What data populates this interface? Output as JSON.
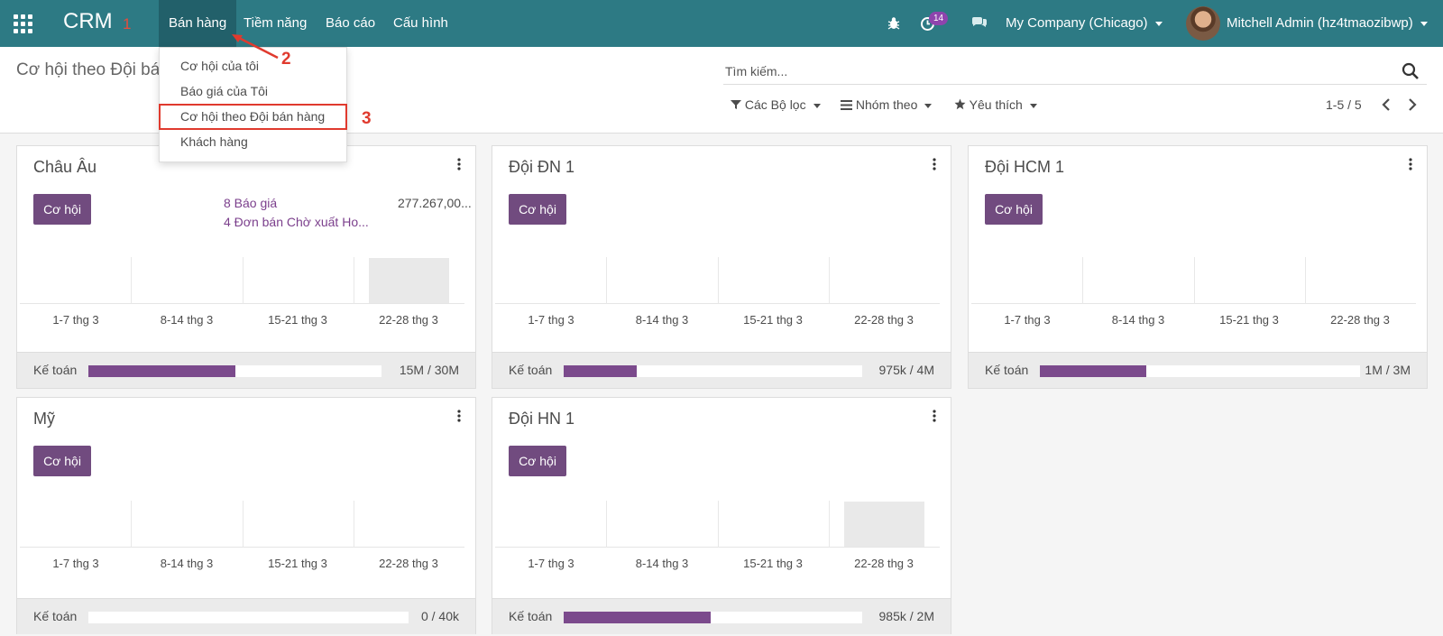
{
  "navbar": {
    "brand": "CRM",
    "brand_annotation": "1",
    "menu": [
      {
        "label": "Bán hàng"
      },
      {
        "label": "Tiềm năng"
      },
      {
        "label": "Báo cáo"
      },
      {
        "label": "Cấu hình"
      }
    ],
    "activity_count": "14",
    "company": "My Company (Chicago)",
    "user": "Mitchell Admin (hz4tmaozibwp)",
    "bg_color": "#2d7a84"
  },
  "dropdown": {
    "items": [
      {
        "label": "Cơ hội của tôi"
      },
      {
        "label": "Báo giá của Tôi"
      },
      {
        "label": "Cơ hội theo Đội bán hàng"
      },
      {
        "label": "Khách hàng"
      }
    ],
    "annotation_arrow": "2",
    "annotation_item": "3"
  },
  "control": {
    "breadcrumb": "Cơ hội theo Đội bá",
    "search_placeholder": "Tìm kiếm...",
    "filters": "Các Bộ lọc",
    "group_by": "Nhóm theo",
    "favorites": "Yêu thích",
    "pager": "1-5 / 5"
  },
  "cards": [
    {
      "title": "Châu Âu",
      "button": "Cơ hội",
      "links": [
        "8 Báo giá",
        "4 Đơn bán Chờ xuất Ho..."
      ],
      "amount": "277.267,00...",
      "weeks": [
        "1-7 thg 3",
        "8-14 thg 3",
        "15-21 thg 3",
        "22-28 thg 3"
      ],
      "graph_values": [
        0,
        0,
        0,
        1
      ],
      "footer_label": "Kế toán",
      "progress": 0.5,
      "footer_value": "15M / 30M"
    },
    {
      "title": "Đội ĐN 1",
      "button": "Cơ hội",
      "links": [],
      "amount": "",
      "weeks": [
        "1-7 thg 3",
        "8-14 thg 3",
        "15-21 thg 3",
        "22-28 thg 3"
      ],
      "graph_values": [
        0,
        0,
        0,
        0
      ],
      "footer_label": "Kế toán",
      "progress": 0.244,
      "footer_value": "975k / 4M"
    },
    {
      "title": "Đội HCM 1",
      "button": "Cơ hội",
      "links": [],
      "amount": "",
      "weeks": [
        "1-7 thg 3",
        "8-14 thg 3",
        "15-21 thg 3",
        "22-28 thg 3"
      ],
      "graph_values": [
        0,
        0,
        0,
        0
      ],
      "footer_label": "Kế toán",
      "progress": 0.333,
      "footer_value": "1M / 3M"
    },
    {
      "title": "Mỹ",
      "button": "Cơ hội",
      "links": [],
      "amount": "",
      "weeks": [
        "1-7 thg 3",
        "8-14 thg 3",
        "15-21 thg 3",
        "22-28 thg 3"
      ],
      "graph_values": [
        0,
        0,
        0,
        0
      ],
      "footer_label": "Kế toán",
      "progress": 0,
      "footer_value": "0 / 40k"
    },
    {
      "title": "Đội HN 1",
      "button": "Cơ hội",
      "links": [],
      "amount": "",
      "weeks": [
        "1-7 thg 3",
        "8-14 thg 3",
        "15-21 thg 3",
        "22-28 thg 3"
      ],
      "graph_values": [
        0,
        0,
        0,
        1
      ],
      "footer_label": "Kế toán",
      "progress": 0.4925,
      "footer_value": "985k / 2M"
    }
  ]
}
